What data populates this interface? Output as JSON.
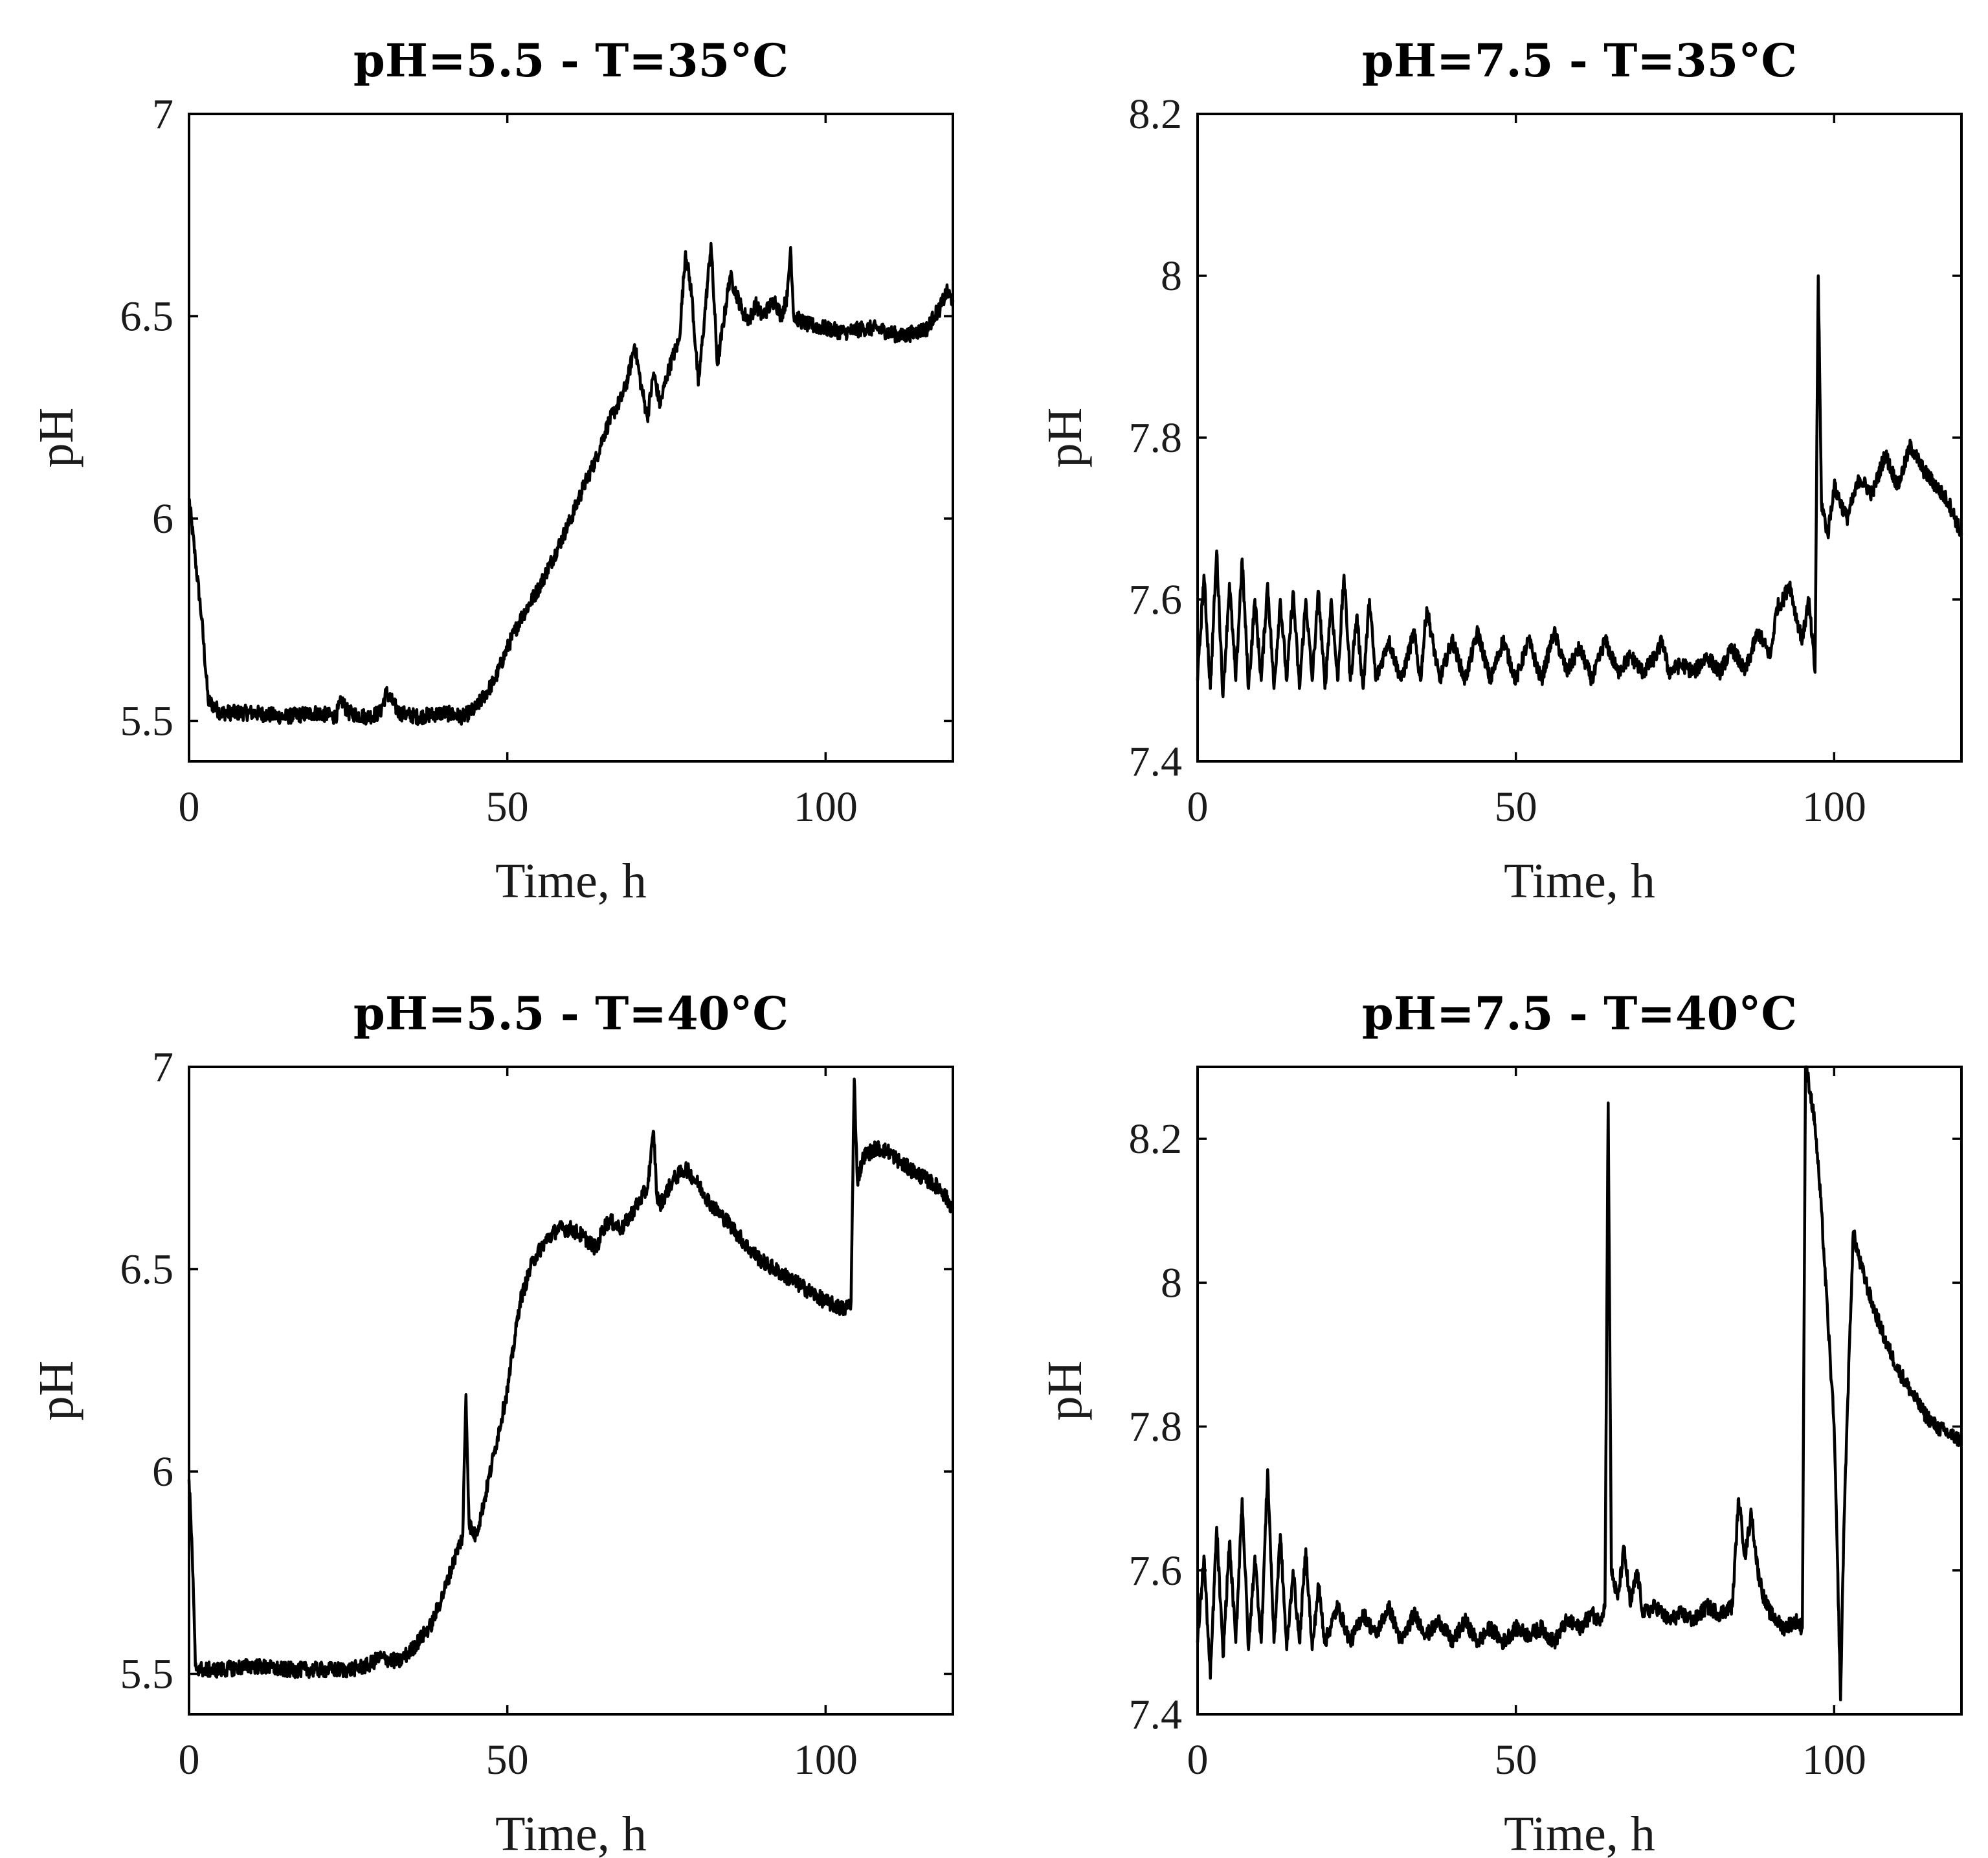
{
  "chart_data": [
    {
      "type": "line",
      "title": "pH=5.5 - T=35°C",
      "xlabel": "Time, h",
      "ylabel": "pH",
      "xlim": [
        0,
        120
      ],
      "ylim": [
        5.4,
        7
      ],
      "xticks": [
        0,
        50,
        100
      ],
      "yticks": [
        5.5,
        6,
        6.5,
        7
      ],
      "x_tick_labels": [
        "0",
        "50",
        "100"
      ],
      "y_tick_labels": [
        "5.5",
        "6",
        "6.5",
        "7"
      ],
      "series": [
        {
          "name": "pH",
          "x": [
            0,
            1,
            2,
            3,
            5,
            10,
            15,
            20,
            23,
            24,
            25,
            28,
            30,
            31,
            33,
            36,
            40,
            43,
            45,
            48,
            50,
            52,
            55,
            58,
            60,
            62,
            64,
            65,
            66,
            67,
            68,
            69,
            70,
            71,
            72,
            73,
            74,
            75,
            76,
            77,
            78,
            79,
            80,
            81,
            82,
            83,
            85,
            87,
            88,
            89,
            90,
            92,
            93,
            94,
            94.5,
            95,
            97,
            100,
            103,
            106,
            108,
            110,
            112,
            114,
            116,
            117,
            118,
            119,
            120
          ],
          "y": [
            6.05,
            5.9,
            5.75,
            5.55,
            5.52,
            5.52,
            5.51,
            5.52,
            5.51,
            5.55,
            5.52,
            5.51,
            5.52,
            5.57,
            5.52,
            5.51,
            5.52,
            5.51,
            5.53,
            5.6,
            5.68,
            5.75,
            5.83,
            5.93,
            6.0,
            6.08,
            6.15,
            6.2,
            6.24,
            6.27,
            6.3,
            6.35,
            6.43,
            6.33,
            6.25,
            6.36,
            6.28,
            6.35,
            6.4,
            6.44,
            6.66,
            6.55,
            6.33,
            6.5,
            6.68,
            6.38,
            6.6,
            6.51,
            6.49,
            6.53,
            6.5,
            6.54,
            6.5,
            6.55,
            6.67,
            6.5,
            6.48,
            6.47,
            6.46,
            6.47,
            6.47,
            6.46,
            6.45,
            6.46,
            6.47,
            6.5,
            6.52,
            6.56,
            6.54
          ]
        }
      ]
    },
    {
      "type": "line",
      "title": "pH=7.5 - T=35°C",
      "xlabel": "Time, h",
      "ylabel": "pH",
      "xlim": [
        0,
        120
      ],
      "ylim": [
        7.4,
        8.2
      ],
      "xticks": [
        0,
        50,
        100
      ],
      "yticks": [
        7.4,
        7.6,
        7.8,
        8,
        8.2
      ],
      "x_tick_labels": [
        "0",
        "50",
        "100"
      ],
      "y_tick_labels": [
        "7.4",
        "7.6",
        "7.8",
        "8",
        "8.2"
      ],
      "series": [
        {
          "name": "pH",
          "x": [
            0,
            1,
            2,
            3,
            4,
            5,
            6,
            7,
            8,
            9,
            10,
            11,
            12,
            13,
            14,
            15,
            16,
            17,
            18,
            19,
            20,
            21,
            22,
            23,
            24,
            25,
            26,
            27,
            28,
            30,
            32,
            34,
            35,
            36,
            38,
            40,
            42,
            44,
            46,
            48,
            50,
            52,
            54,
            56,
            58,
            60,
            62,
            64,
            66,
            68,
            70,
            72,
            73,
            74,
            76,
            78,
            80,
            82,
            84,
            86,
            88,
            90,
            91,
            92,
            93,
            94,
            95,
            96,
            97,
            97.5,
            98,
            99,
            100,
            102,
            104,
            106,
            108,
            110,
            112,
            114,
            116,
            118,
            120
          ],
          "y": [
            7.5,
            7.63,
            7.49,
            7.66,
            7.48,
            7.62,
            7.5,
            7.65,
            7.49,
            7.6,
            7.5,
            7.62,
            7.49,
            7.6,
            7.5,
            7.61,
            7.49,
            7.6,
            7.5,
            7.61,
            7.49,
            7.6,
            7.5,
            7.63,
            7.5,
            7.58,
            7.49,
            7.6,
            7.5,
            7.55,
            7.5,
            7.56,
            7.5,
            7.59,
            7.5,
            7.55,
            7.5,
            7.56,
            7.5,
            7.55,
            7.5,
            7.55,
            7.5,
            7.56,
            7.51,
            7.54,
            7.5,
            7.55,
            7.51,
            7.53,
            7.51,
            7.53,
            7.55,
            7.51,
            7.52,
            7.51,
            7.53,
            7.51,
            7.54,
            7.51,
            7.56,
            7.53,
            7.59,
            7.6,
            7.62,
            7.58,
            7.55,
            7.6,
            7.51,
            8.0,
            7.72,
            7.68,
            7.74,
            7.7,
            7.75,
            7.73,
            7.78,
            7.74,
            7.79,
            7.76,
            7.74,
            7.72,
            7.68
          ]
        }
      ]
    },
    {
      "type": "line",
      "title": "pH=5.5 - T=40°C",
      "xlabel": "Time, h",
      "ylabel": "pH",
      "xlim": [
        0,
        120
      ],
      "ylim": [
        5.4,
        7
      ],
      "xticks": [
        0,
        50,
        100
      ],
      "yticks": [
        5.5,
        6,
        6.5,
        7
      ],
      "x_tick_labels": [
        "0",
        "50",
        "100"
      ],
      "y_tick_labels": [
        "5.5",
        "6",
        "6.5",
        "7"
      ],
      "series": [
        {
          "name": "pH",
          "x": [
            0,
            0.5,
            1,
            2,
            5,
            10,
            15,
            20,
            25,
            28,
            30,
            33,
            35,
            38,
            40,
            42,
            43,
            43.5,
            44,
            45,
            46,
            48,
            50,
            52,
            54,
            56,
            58,
            60,
            62,
            64,
            65,
            66,
            68,
            70,
            72,
            73,
            73.5,
            74,
            76,
            78,
            80,
            82,
            85,
            88,
            90,
            92,
            95,
            98,
            100,
            103,
            104,
            104.5,
            105,
            106,
            108,
            110,
            112,
            114,
            116,
            118,
            120
          ],
          "y": [
            5.98,
            5.8,
            5.52,
            5.51,
            5.51,
            5.52,
            5.51,
            5.51,
            5.51,
            5.52,
            5.54,
            5.53,
            5.56,
            5.62,
            5.7,
            5.8,
            5.84,
            6.19,
            5.87,
            5.84,
            5.9,
            6.05,
            6.2,
            6.42,
            6.52,
            6.57,
            6.6,
            6.6,
            6.58,
            6.55,
            6.6,
            6.62,
            6.6,
            6.65,
            6.7,
            6.84,
            6.68,
            6.66,
            6.72,
            6.75,
            6.71,
            6.66,
            6.61,
            6.55,
            6.52,
            6.5,
            6.47,
            6.44,
            6.42,
            6.4,
            6.42,
            6.97,
            6.72,
            6.78,
            6.8,
            6.79,
            6.76,
            6.74,
            6.72,
            6.7,
            6.65
          ]
        }
      ]
    },
    {
      "type": "line",
      "title": "pH=7.5 - T=40°C",
      "xlabel": "Time, h",
      "ylabel": "pH",
      "xlim": [
        0,
        120
      ],
      "ylim": [
        7.4,
        8.3
      ],
      "xticks": [
        0,
        50,
        100
      ],
      "yticks": [
        7.4,
        7.6,
        7.8,
        8,
        8.2
      ],
      "x_tick_labels": [
        "0",
        "50",
        "100"
      ],
      "y_tick_labels": [
        "7.4",
        "7.6",
        "7.8",
        "8",
        "8.2"
      ],
      "series": [
        {
          "name": "pH",
          "x": [
            0,
            1,
            2,
            3,
            4,
            5,
            6,
            7,
            8,
            9,
            10,
            11,
            12,
            13,
            14,
            15,
            16,
            17,
            18,
            19,
            20,
            22,
            24,
            26,
            28,
            30,
            32,
            34,
            36,
            38,
            40,
            42,
            44,
            46,
            48,
            50,
            52,
            54,
            56,
            58,
            60,
            62,
            63,
            64,
            64.5,
            65,
            66,
            67,
            68,
            69,
            70,
            72,
            74,
            76,
            78,
            80,
            82,
            84,
            85,
            86,
            87,
            88,
            89,
            90,
            92,
            94,
            95,
            95.5,
            96,
            97,
            98,
            99,
            100,
            100.5,
            101,
            101.5,
            102,
            103,
            104,
            106,
            108,
            110,
            112,
            114,
            116,
            118,
            120
          ],
          "y": [
            7.5,
            7.62,
            7.45,
            7.66,
            7.48,
            7.64,
            7.5,
            7.7,
            7.49,
            7.62,
            7.5,
            7.74,
            7.5,
            7.65,
            7.49,
            7.6,
            7.5,
            7.63,
            7.49,
            7.58,
            7.5,
            7.55,
            7.5,
            7.54,
            7.51,
            7.55,
            7.5,
            7.54,
            7.51,
            7.53,
            7.5,
            7.53,
            7.5,
            7.52,
            7.5,
            7.52,
            7.51,
            7.52,
            7.5,
            7.53,
            7.52,
            7.54,
            7.53,
            7.55,
            8.25,
            7.6,
            7.56,
            7.63,
            7.55,
            7.6,
            7.54,
            7.55,
            7.53,
            7.54,
            7.53,
            7.55,
            7.54,
            7.55,
            7.7,
            7.62,
            7.68,
            7.6,
            7.56,
            7.54,
            7.52,
            7.53,
            7.52,
            8.3,
            8.28,
            8.22,
            8.1,
            7.95,
            7.8,
            7.62,
            7.42,
            7.65,
            7.8,
            8.07,
            8.03,
            7.97,
            7.92,
            7.88,
            7.85,
            7.82,
            7.8,
            7.79,
            7.78
          ]
        }
      ]
    }
  ]
}
